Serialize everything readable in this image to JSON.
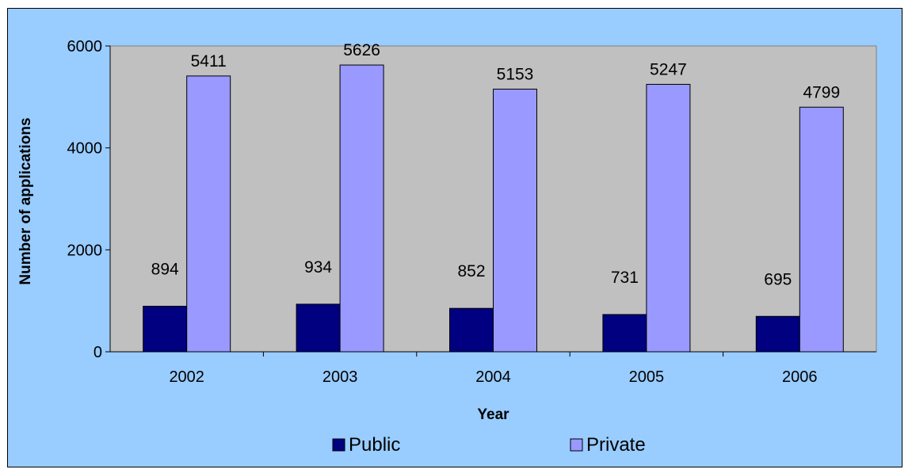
{
  "chart_data": {
    "type": "bar",
    "title": "",
    "xlabel": "Year",
    "ylabel": "Number of applications",
    "categories": [
      "2002",
      "2003",
      "2004",
      "2005",
      "2006"
    ],
    "series": [
      {
        "name": "Public",
        "values": [
          894,
          934,
          852,
          731,
          695
        ],
        "color": "#000080"
      },
      {
        "name": "Private",
        "values": [
          5411,
          5626,
          5153,
          5247,
          4799
        ],
        "color": "#9999FF"
      }
    ],
    "ylim": [
      0,
      6000
    ],
    "yticks": [
      "0",
      "2000",
      "4000",
      "6000"
    ],
    "data_labels": true,
    "grid": false,
    "legend_position": "bottom",
    "colors": {
      "background": "#99CCFF",
      "plot_area": "#C0C0C0"
    }
  }
}
